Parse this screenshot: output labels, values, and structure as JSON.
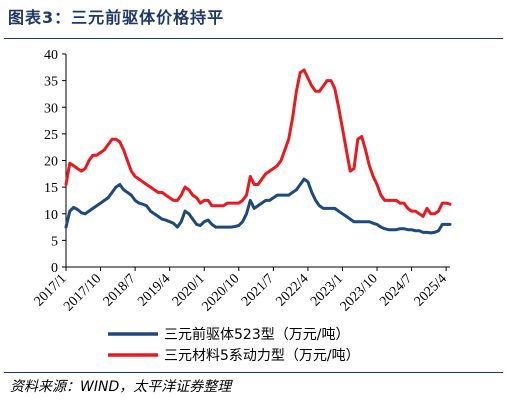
{
  "title": "图表3：三元前驱体价格持平",
  "source": "资料来源：WIND，太平洋证券整理",
  "colors": {
    "title": "#1f3864",
    "series_blue": "#1f497d",
    "series_red": "#e8191f"
  },
  "chart_data": {
    "type": "line",
    "title": "图表3：三元前驱体价格持平",
    "xlabel": "",
    "ylabel": "",
    "ylim": [
      0,
      40
    ],
    "yticks": [
      0,
      5,
      10,
      15,
      20,
      25,
      30,
      35,
      40
    ],
    "xticks": [
      "2017/1",
      "2017/10",
      "2018/7",
      "2019/4",
      "2020/1",
      "2020/10",
      "2021/7",
      "2022/4",
      "2023/1",
      "2023/10",
      "2024/7",
      "2025/4"
    ],
    "xlim": [
      "2017/1",
      "2025/5"
    ],
    "grid": false,
    "legend_position": "bottom",
    "series": [
      {
        "name": "三元前驱体523型（万元/吨）",
        "color": "#1f497d",
        "points": [
          [
            "2017/1",
            7.5
          ],
          [
            "2017/2",
            10.5
          ],
          [
            "2017/3",
            11.2
          ],
          [
            "2017/4",
            10.8
          ],
          [
            "2017/5",
            10.2
          ],
          [
            "2017/6",
            10.0
          ],
          [
            "2017/7",
            10.5
          ],
          [
            "2017/8",
            11.0
          ],
          [
            "2017/9",
            11.5
          ],
          [
            "2017/10",
            12.0
          ],
          [
            "2017/11",
            12.5
          ],
          [
            "2017/12",
            13.0
          ],
          [
            "2018/1",
            14.0
          ],
          [
            "2018/2",
            15.0
          ],
          [
            "2018/3",
            15.5
          ],
          [
            "2018/4",
            14.5
          ],
          [
            "2018/5",
            14.0
          ],
          [
            "2018/6",
            13.5
          ],
          [
            "2018/7",
            12.5
          ],
          [
            "2018/8",
            12.0
          ],
          [
            "2018/9",
            11.8
          ],
          [
            "2018/10",
            11.5
          ],
          [
            "2018/11",
            10.5
          ],
          [
            "2018/12",
            10.0
          ],
          [
            "2019/1",
            9.5
          ],
          [
            "2019/2",
            9.0
          ],
          [
            "2019/3",
            8.8
          ],
          [
            "2019/4",
            8.5
          ],
          [
            "2019/5",
            8.2
          ],
          [
            "2019/6",
            7.5
          ],
          [
            "2019/7",
            8.5
          ],
          [
            "2019/8",
            10.5
          ],
          [
            "2019/9",
            10.0
          ],
          [
            "2019/10",
            9.0
          ],
          [
            "2019/11",
            8.0
          ],
          [
            "2019/12",
            7.8
          ],
          [
            "2020/1",
            8.5
          ],
          [
            "2020/2",
            8.8
          ],
          [
            "2020/3",
            8.0
          ],
          [
            "2020/4",
            7.5
          ],
          [
            "2020/5",
            7.5
          ],
          [
            "2020/6",
            7.5
          ],
          [
            "2020/7",
            7.5
          ],
          [
            "2020/8",
            7.5
          ],
          [
            "2020/9",
            7.6
          ],
          [
            "2020/10",
            7.8
          ],
          [
            "2020/11",
            8.5
          ],
          [
            "2020/12",
            10.0
          ],
          [
            "2021/1",
            12.5
          ],
          [
            "2021/2",
            11.0
          ],
          [
            "2021/3",
            11.5
          ],
          [
            "2021/4",
            12.0
          ],
          [
            "2021/5",
            12.5
          ],
          [
            "2021/6",
            12.5
          ],
          [
            "2021/7",
            13.0
          ],
          [
            "2021/8",
            13.5
          ],
          [
            "2021/9",
            13.5
          ],
          [
            "2021/10",
            13.5
          ],
          [
            "2021/11",
            13.5
          ],
          [
            "2021/12",
            14.0
          ],
          [
            "2022/1",
            14.5
          ],
          [
            "2022/2",
            15.5
          ],
          [
            "2022/3",
            16.5
          ],
          [
            "2022/4",
            16.0
          ],
          [
            "2022/5",
            14.0
          ],
          [
            "2022/6",
            12.5
          ],
          [
            "2022/7",
            11.5
          ],
          [
            "2022/8",
            11.0
          ],
          [
            "2022/9",
            11.0
          ],
          [
            "2022/10",
            11.0
          ],
          [
            "2022/11",
            11.0
          ],
          [
            "2022/12",
            10.5
          ],
          [
            "2023/1",
            10.0
          ],
          [
            "2023/2",
            9.5
          ],
          [
            "2023/3",
            9.0
          ],
          [
            "2023/4",
            8.5
          ],
          [
            "2023/5",
            8.5
          ],
          [
            "2023/6",
            8.5
          ],
          [
            "2023/7",
            8.5
          ],
          [
            "2023/8",
            8.5
          ],
          [
            "2023/9",
            8.2
          ],
          [
            "2023/10",
            8.0
          ],
          [
            "2023/11",
            7.5
          ],
          [
            "2023/12",
            7.2
          ],
          [
            "2024/1",
            7.0
          ],
          [
            "2024/2",
            7.0
          ],
          [
            "2024/3",
            7.0
          ],
          [
            "2024/4",
            7.2
          ],
          [
            "2024/5",
            7.2
          ],
          [
            "2024/6",
            7.0
          ],
          [
            "2024/7",
            7.0
          ],
          [
            "2024/8",
            6.8
          ],
          [
            "2024/9",
            6.8
          ],
          [
            "2024/10",
            6.5
          ],
          [
            "2024/11",
            6.5
          ],
          [
            "2024/12",
            6.4
          ],
          [
            "2025/1",
            6.5
          ],
          [
            "2025/2",
            6.8
          ],
          [
            "2025/3",
            8.0
          ],
          [
            "2025/4",
            8.0
          ],
          [
            "2025/5",
            8.0
          ]
        ]
      },
      {
        "name": "三元材料5系动力型（万元/吨）",
        "color": "#e8191f",
        "points": [
          [
            "2017/1",
            15.5
          ],
          [
            "2017/2",
            19.5
          ],
          [
            "2017/3",
            19.0
          ],
          [
            "2017/4",
            18.5
          ],
          [
            "2017/5",
            18.0
          ],
          [
            "2017/6",
            18.5
          ],
          [
            "2017/7",
            20.0
          ],
          [
            "2017/8",
            21.0
          ],
          [
            "2017/9",
            21.0
          ],
          [
            "2017/10",
            21.5
          ],
          [
            "2017/11",
            22.0
          ],
          [
            "2017/12",
            23.0
          ],
          [
            "2018/1",
            24.0
          ],
          [
            "2018/2",
            24.0
          ],
          [
            "2018/3",
            23.5
          ],
          [
            "2018/4",
            22.0
          ],
          [
            "2018/5",
            20.0
          ],
          [
            "2018/6",
            18.0
          ],
          [
            "2018/7",
            17.0
          ],
          [
            "2018/8",
            16.5
          ],
          [
            "2018/9",
            16.0
          ],
          [
            "2018/10",
            15.5
          ],
          [
            "2018/11",
            15.0
          ],
          [
            "2018/12",
            14.5
          ],
          [
            "2019/1",
            14.0
          ],
          [
            "2019/2",
            14.0
          ],
          [
            "2019/3",
            13.5
          ],
          [
            "2019/4",
            13.0
          ],
          [
            "2019/5",
            12.5
          ],
          [
            "2019/6",
            12.5
          ],
          [
            "2019/7",
            13.5
          ],
          [
            "2019/8",
            15.0
          ],
          [
            "2019/9",
            14.5
          ],
          [
            "2019/10",
            13.5
          ],
          [
            "2019/11",
            13.0
          ],
          [
            "2019/12",
            12.0
          ],
          [
            "2020/1",
            12.5
          ],
          [
            "2020/2",
            12.5
          ],
          [
            "2020/3",
            11.5
          ],
          [
            "2020/4",
            11.5
          ],
          [
            "2020/5",
            11.5
          ],
          [
            "2020/6",
            11.5
          ],
          [
            "2020/7",
            12.0
          ],
          [
            "2020/8",
            12.0
          ],
          [
            "2020/9",
            12.0
          ],
          [
            "2020/10",
            12.0
          ],
          [
            "2020/11",
            12.5
          ],
          [
            "2020/12",
            13.5
          ],
          [
            "2021/1",
            17.0
          ],
          [
            "2021/2",
            15.5
          ],
          [
            "2021/3",
            15.5
          ],
          [
            "2021/4",
            16.5
          ],
          [
            "2021/5",
            17.5
          ],
          [
            "2021/6",
            18.0
          ],
          [
            "2021/7",
            18.5
          ],
          [
            "2021/8",
            19.0
          ],
          [
            "2021/9",
            20.0
          ],
          [
            "2021/10",
            22.0
          ],
          [
            "2021/11",
            24.0
          ],
          [
            "2021/12",
            28.0
          ],
          [
            "2022/1",
            33.0
          ],
          [
            "2022/2",
            36.5
          ],
          [
            "2022/3",
            37.0
          ],
          [
            "2022/4",
            35.5
          ],
          [
            "2022/5",
            34.0
          ],
          [
            "2022/6",
            33.0
          ],
          [
            "2022/7",
            33.0
          ],
          [
            "2022/8",
            34.0
          ],
          [
            "2022/9",
            35.0
          ],
          [
            "2022/10",
            35.0
          ],
          [
            "2022/11",
            33.5
          ],
          [
            "2022/12",
            30.0
          ],
          [
            "2023/1",
            26.0
          ],
          [
            "2023/2",
            22.0
          ],
          [
            "2023/3",
            18.0
          ],
          [
            "2023/4",
            18.5
          ],
          [
            "2023/5",
            24.0
          ],
          [
            "2023/6",
            24.5
          ],
          [
            "2023/7",
            22.0
          ],
          [
            "2023/8",
            19.0
          ],
          [
            "2023/9",
            17.0
          ],
          [
            "2023/10",
            15.5
          ],
          [
            "2023/11",
            13.5
          ],
          [
            "2023/12",
            12.5
          ],
          [
            "2024/1",
            12.5
          ],
          [
            "2024/2",
            12.5
          ],
          [
            "2024/3",
            12.5
          ],
          [
            "2024/4",
            12.0
          ],
          [
            "2024/5",
            12.0
          ],
          [
            "2024/6",
            11.0
          ],
          [
            "2024/7",
            10.5
          ],
          [
            "2024/8",
            10.5
          ],
          [
            "2024/9",
            10.0
          ],
          [
            "2024/10",
            9.5
          ],
          [
            "2024/11",
            11.0
          ],
          [
            "2024/12",
            10.0
          ],
          [
            "2025/1",
            10.0
          ],
          [
            "2025/2",
            10.5
          ],
          [
            "2025/3",
            12.0
          ],
          [
            "2025/4",
            12.0
          ],
          [
            "2025/5",
            11.8
          ]
        ]
      }
    ]
  }
}
